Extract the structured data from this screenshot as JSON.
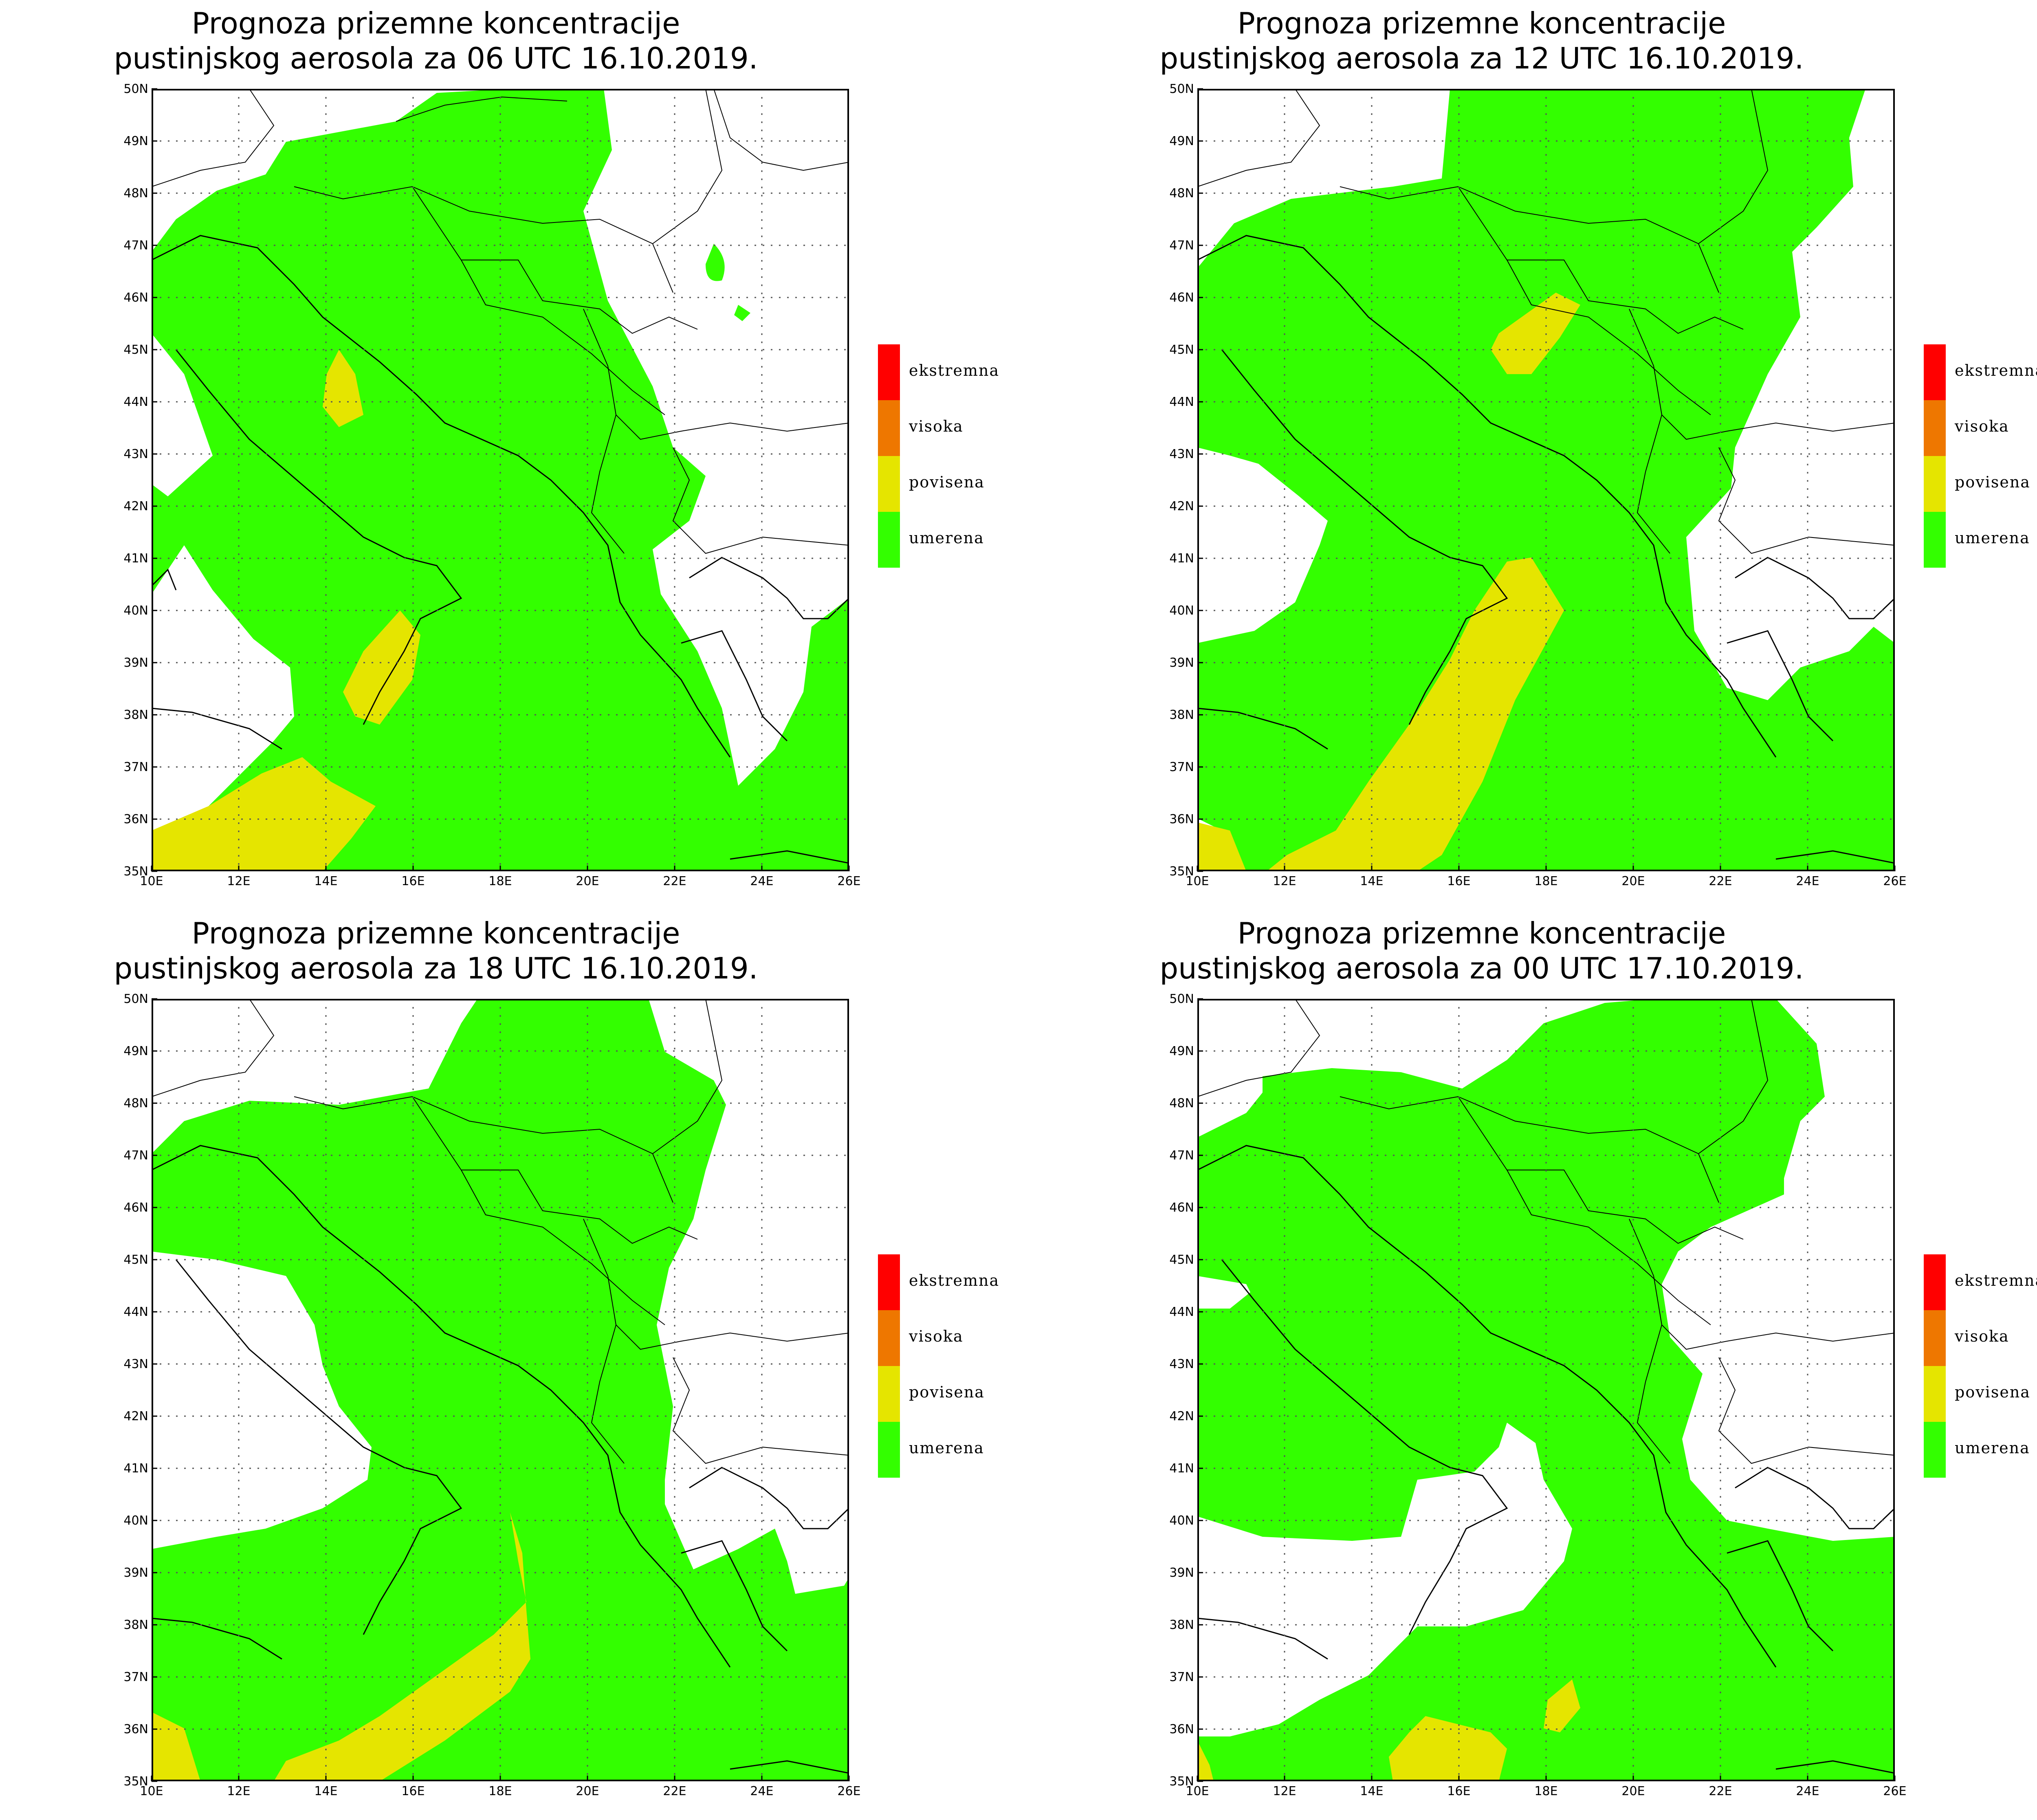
{
  "legend": {
    "items": [
      {
        "label": "ekstremna",
        "color": "#ff0000"
      },
      {
        "label": "visoka",
        "color": "#ee7700"
      },
      {
        "label": "povisena",
        "color": "#e5e500"
      },
      {
        "label": "umerena",
        "color": "#33ff00"
      }
    ]
  },
  "axes": {
    "lon_labels": [
      "10E",
      "12E",
      "14E",
      "16E",
      "18E",
      "20E",
      "22E",
      "24E",
      "26E"
    ],
    "lat_labels": [
      "35N",
      "36N",
      "37N",
      "38N",
      "39N",
      "40N",
      "41N",
      "42N",
      "43N",
      "44N",
      "45N",
      "46N",
      "47N",
      "48N",
      "49N",
      "50N"
    ],
    "lon_range": [
      10,
      26
    ],
    "lat_range": [
      35,
      50
    ]
  },
  "panels": [
    {
      "title_line1": "Prognoza prizemne koncentracije",
      "title_line2": "pustinjskog aerosola za 06 UTC 16.10.2019."
    },
    {
      "title_line1": "Prognoza prizemne koncentracije",
      "title_line2": "pustinjskog aerosola za 12 UTC 16.10.2019."
    },
    {
      "title_line1": "Prognoza prizemne koncentracije",
      "title_line2": "pustinjskog aerosola za 18 UTC 16.10.2019."
    },
    {
      "title_line1": "Prognoza prizemne koncentracije",
      "title_line2": "pustinjskog aerosola za 00 UTC 17.10.2019."
    }
  ]
}
